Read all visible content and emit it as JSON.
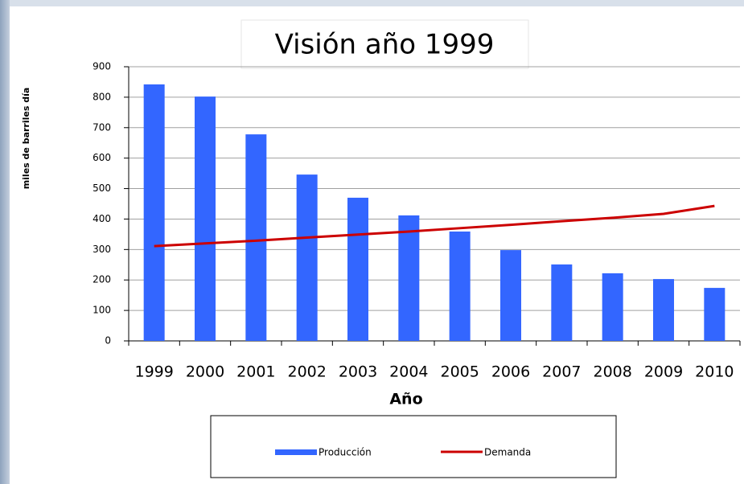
{
  "chart_data": {
    "type": "bar",
    "title": "Visión año 1999",
    "x_label": "Año",
    "y_label": "miles de barriles día",
    "categories": [
      "1999",
      "2000",
      "2001",
      "2002",
      "2003",
      "2004",
      "2005",
      "2006",
      "2007",
      "2008",
      "2009",
      "2010"
    ],
    "series": [
      {
        "name": "Producción",
        "type": "bar",
        "color": "#3366ff",
        "values": [
          842,
          802,
          678,
          546,
          470,
          412,
          359,
          298,
          251,
          222,
          203,
          174
        ]
      },
      {
        "name": "Demanda",
        "type": "line",
        "color": "#cc0000",
        "values": [
          311,
          320,
          329,
          339,
          349,
          359,
          370,
          381,
          393,
          404,
          417,
          443
        ]
      }
    ],
    "ylim": [
      0,
      900
    ],
    "yticks": [
      0,
      100,
      200,
      300,
      400,
      500,
      600,
      700,
      800,
      900
    ],
    "grid": true,
    "legend": "bottom"
  }
}
